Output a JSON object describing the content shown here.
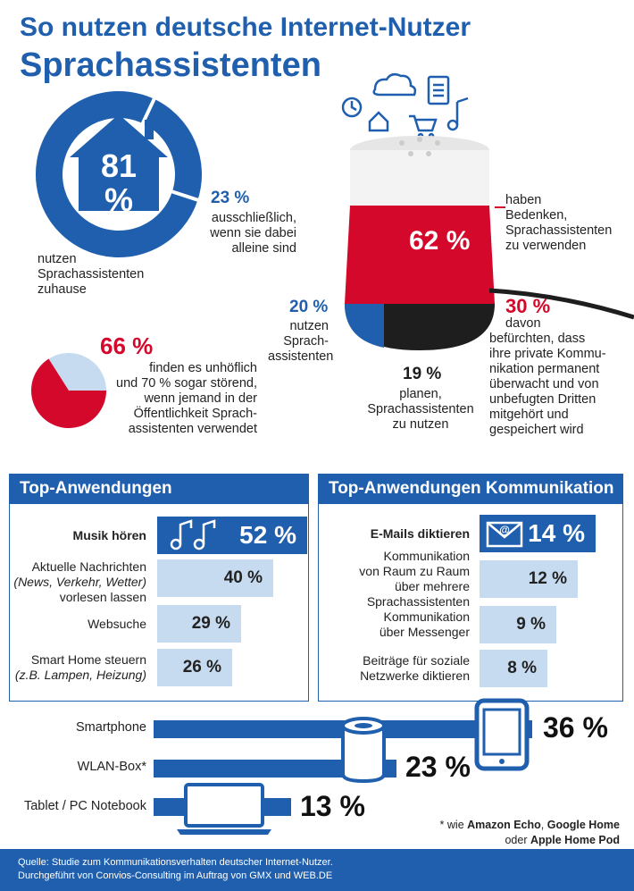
{
  "title": {
    "line1": "So nutzen deutsche Internet-Nutzer",
    "line2": "Sprachassistenten"
  },
  "home": {
    "value": "81",
    "unit": "%",
    "desc_line1": "nutzen",
    "desc_line2": "Sprachassistenten",
    "desc_line3": "zuhause",
    "alone_pct": "23 %",
    "alone_line1": "ausschließlich,",
    "alone_line2": "wenn sie dabei",
    "alone_line3": "alleine sind"
  },
  "rude": {
    "pct": "66 %",
    "line1": "finden es unhöflich",
    "line2": "und 70 % sogar störend,",
    "line3": "wenn jemand in der",
    "line4": "Öffentlichkeit Sprach-",
    "line5": "assistenten verwendet"
  },
  "speaker": {
    "main_pct": "62 %",
    "concern_line1": "haben",
    "concern_line2": "Bedenken,",
    "concern_line3": "Sprachassistenten",
    "concern_line4": "zu verwenden",
    "use_pct": "20 %",
    "use_line1": "nutzen",
    "use_line2": "Sprach-",
    "use_line3": "assistenten",
    "plan_pct": "19 %",
    "plan_line1": "planen,",
    "plan_line2": "Sprachassistenten",
    "plan_line3": "zu nutzen",
    "fear_pct": "30 %",
    "fear_line1": "davon",
    "fear_line2": "befürchten, dass",
    "fear_line3": "ihre private Kommu-",
    "fear_line4": "nikation permanent",
    "fear_line5": "überwacht und von",
    "fear_line6": "unbefugten Dritten",
    "fear_line7": "mitgehört und",
    "fear_line8": "gespeichert wird"
  },
  "top_apps": {
    "heading": "Top-Anwendungen",
    "items": [
      {
        "label_line1": "Musik hören",
        "label_line2": "",
        "label_line3": "",
        "pct": "52 %"
      },
      {
        "label_line1": "Aktuelle Nachrichten",
        "label_line2": "(News, Verkehr, Wetter)",
        "label_line3": "vorlesen lassen",
        "pct": "40 %"
      },
      {
        "label_line1": "Websuche",
        "label_line2": "",
        "label_line3": "",
        "pct": "29 %"
      },
      {
        "label_line1": "Smart Home steuern",
        "label_line2": "(z.B. Lampen, Heizung)",
        "label_line3": "",
        "pct": "26 %"
      }
    ]
  },
  "top_comm": {
    "heading": "Top-Anwendungen Kommunikation",
    "items": [
      {
        "label_line1": "E-Mails diktieren",
        "label_line2": "",
        "label_line3": "",
        "pct": "14 %"
      },
      {
        "label_line1": "Kommunikation",
        "label_line2": "von Raum zu Raum",
        "label_line3": "über mehrere",
        "label_line4": "Sprachassistenten",
        "pct": "12 %"
      },
      {
        "label_line1": "Kommunikation",
        "label_line2": "über Messenger",
        "label_line3": "",
        "pct": "9 %"
      },
      {
        "label_line1": "Beiträge für soziale",
        "label_line2": "Netzwerke diktieren",
        "label_line3": "",
        "pct": "8 %"
      }
    ]
  },
  "devices": {
    "items": [
      {
        "label": "Smartphone",
        "pct": "36 %"
      },
      {
        "label": "WLAN-Box*",
        "pct": "23 %"
      },
      {
        "label": "Tablet / PC Notebook",
        "pct": "13 %"
      }
    ],
    "note_line1_pre": "* wie ",
    "note_line1_b1": "Amazon Echo",
    "note_line1_mid": ", ",
    "note_line1_b2": "Google Home",
    "note_line2_pre": "oder ",
    "note_line2_b": "Apple Home Pod"
  },
  "footer": {
    "line1": "Quelle: Studie zum Kommunikationsverhalten deutscher Internet-Nutzer.",
    "line2": "Durchgeführt von Convios-Consulting im Auftrag von GMX und WEB.DE"
  },
  "colors": {
    "blue": "#1f5fae",
    "light_blue": "#c6daf0",
    "red": "#d4082a",
    "dark": "#1e1e1e"
  },
  "chart_data": [
    {
      "type": "pie",
      "categories": [
        "nutzen Sprachassistenten zuhause"
      ],
      "values": [
        81
      ],
      "sub_values": [
        {
          "label": "ausschließlich, wenn sie dabei alleine sind",
          "value": 23
        }
      ]
    },
    {
      "type": "pie",
      "categories": [
        "finden es unhöflich"
      ],
      "values": [
        66
      ]
    },
    {
      "type": "bar",
      "title": "Top-Anwendungen",
      "categories": [
        "Musik hören",
        "Aktuelle Nachrichten (News, Verkehr, Wetter) vorlesen lassen",
        "Websuche",
        "Smart Home steuern (z.B. Lampen, Heizung)"
      ],
      "values": [
        52,
        40,
        29,
        26
      ]
    },
    {
      "type": "bar",
      "title": "Top-Anwendungen Kommunikation",
      "categories": [
        "E-Mails diktieren",
        "Kommunikation von Raum zu Raum über mehrere Sprachassistenten",
        "Kommunikation über Messenger",
        "Beiträge für soziale Netzwerke diktieren"
      ],
      "values": [
        14,
        12,
        9,
        8
      ]
    },
    {
      "type": "bar",
      "categories": [
        "Smartphone",
        "WLAN-Box*",
        "Tablet / PC Notebook"
      ],
      "values": [
        36,
        23,
        13
      ]
    }
  ]
}
